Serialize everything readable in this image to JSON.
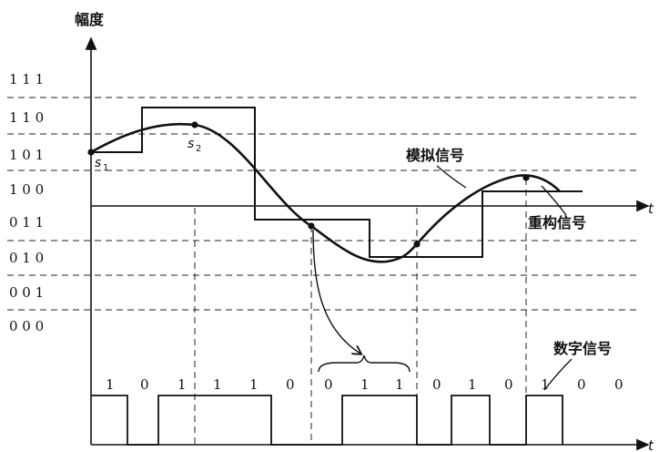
{
  "labels": {
    "amplitude": "幅度",
    "analog_signal": "模拟信号",
    "reconstructed_signal": "重构信号",
    "digital_signal": "数字信号",
    "t_top": "t",
    "t_bottom": "t",
    "s1": "s",
    "s1_sub": "1",
    "s2": "s",
    "s2_sub": "2"
  },
  "level_codes": [
    "1 1 1",
    "1 1 0",
    "1 0 1",
    "1 0 0",
    "0 1 1",
    "0 1 0",
    "0 0 1",
    "0 0 0"
  ],
  "bit_stream": [
    "1",
    "0",
    "1",
    "1",
    "1",
    "0",
    "0",
    "1",
    "1",
    "0",
    "1",
    "0",
    "1",
    "0",
    "0"
  ],
  "colors": {
    "ink": "#111111",
    "background": "#ffffff"
  }
}
